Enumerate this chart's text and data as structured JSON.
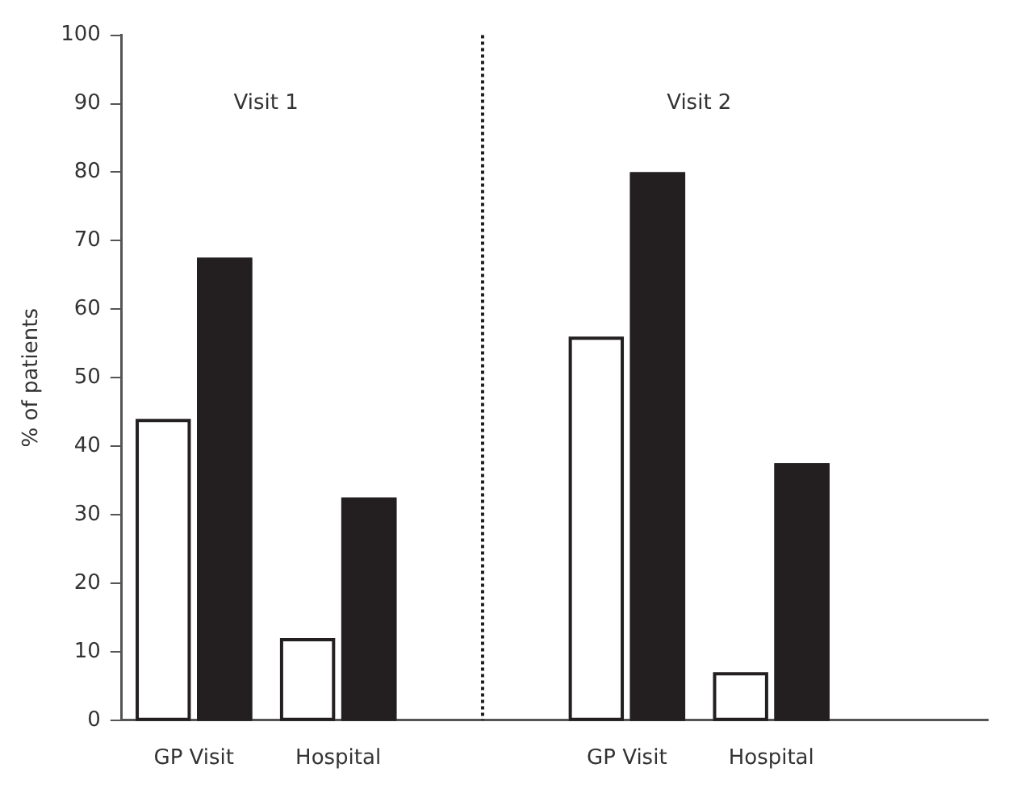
{
  "chart_data": {
    "type": "bar",
    "ylabel": "% of patients",
    "categories": [
      "GP Visit",
      "Hospital",
      null,
      "GP Visit",
      "Hospital",
      null
    ],
    "series": [
      {
        "color": "#ffffff",
        "values": [
          44,
          12,
          null,
          56,
          7,
          null
        ]
      },
      {
        "color": "#231f20",
        "values": [
          67.5,
          32.5,
          null,
          80,
          37.5,
          null
        ]
      }
    ],
    "ylim": [
      0,
      100
    ],
    "yticks": [
      0,
      10,
      20,
      30,
      40,
      50,
      60,
      70,
      80,
      90,
      100
    ],
    "legend": false,
    "annotations": [
      "Visit 1",
      "Visit 2"
    ]
  }
}
